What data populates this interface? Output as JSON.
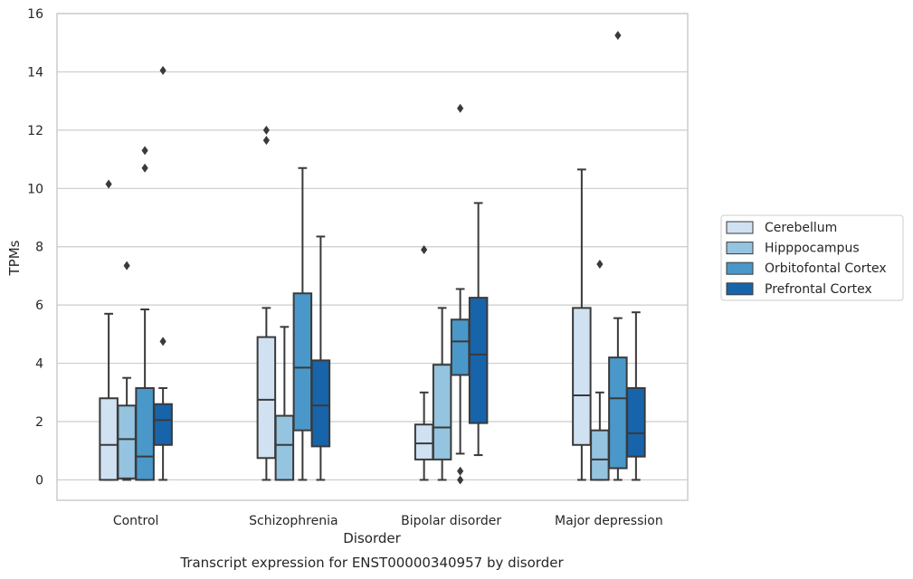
{
  "chart_data": {
    "type": "box",
    "xlabel": "Disorder",
    "ylabel": "TPMs",
    "caption": "Transcript expression for ENST00000340957 by disorder",
    "ylim": [
      -0.7,
      16
    ],
    "yticks": [
      0,
      2,
      4,
      6,
      8,
      10,
      12,
      14,
      16
    ],
    "grid": "horizontal",
    "legend_position": "right",
    "categories": [
      "Control",
      "Schizophrenia",
      "Bipolar disorder",
      "Major depression"
    ],
    "series": [
      {
        "name": "Cerebellum",
        "color": "#d0e1f2",
        "boxes": [
          {
            "min": 0,
            "q1": 0,
            "median": 1.2,
            "q3": 2.8,
            "max": 5.7,
            "outliers": [
              10.15
            ]
          },
          {
            "min": 0,
            "q1": 0.75,
            "median": 2.75,
            "q3": 4.9,
            "max": 5.9,
            "outliers": [
              11.65,
              12.0
            ]
          },
          {
            "min": 0,
            "q1": 0.7,
            "median": 1.25,
            "q3": 1.9,
            "max": 3.0,
            "outliers": [
              7.9
            ]
          },
          {
            "min": 0,
            "q1": 1.2,
            "median": 2.9,
            "q3": 5.9,
            "max": 10.65,
            "outliers": []
          }
        ]
      },
      {
        "name": "Hipppocampus",
        "color": "#94c4df",
        "boxes": [
          {
            "min": 0,
            "q1": 0.05,
            "median": 1.4,
            "q3": 2.55,
            "max": 3.5,
            "outliers": [
              7.35
            ]
          },
          {
            "min": 0,
            "q1": 0,
            "median": 1.2,
            "q3": 2.2,
            "max": 5.25,
            "outliers": []
          },
          {
            "min": 0,
            "q1": 0.7,
            "median": 1.8,
            "q3": 3.95,
            "max": 5.9,
            "outliers": []
          },
          {
            "min": 0,
            "q1": 0,
            "median": 0.7,
            "q3": 1.7,
            "max": 3.0,
            "outliers": [
              7.4
            ]
          }
        ]
      },
      {
        "name": "Orbitofontal Cortex",
        "color": "#4a98c9",
        "boxes": [
          {
            "min": 0,
            "q1": 0,
            "median": 0.8,
            "q3": 3.15,
            "max": 5.85,
            "outliers": [
              10.7,
              11.3
            ]
          },
          {
            "min": 0,
            "q1": 1.7,
            "median": 3.85,
            "q3": 6.4,
            "max": 10.7,
            "outliers": []
          },
          {
            "min": 0.9,
            "q1": 3.6,
            "median": 4.75,
            "q3": 5.5,
            "max": 6.55,
            "outliers": [
              0.0,
              0.3,
              12.75
            ]
          },
          {
            "min": 0,
            "q1": 0.4,
            "median": 2.8,
            "q3": 4.2,
            "max": 5.55,
            "outliers": [
              15.25
            ]
          }
        ]
      },
      {
        "name": "Prefrontal Cortex",
        "color": "#1764ab",
        "boxes": [
          {
            "min": 0,
            "q1": 1.2,
            "median": 2.05,
            "q3": 2.6,
            "max": 3.15,
            "outliers": [
              4.75,
              14.05
            ]
          },
          {
            "min": 0,
            "q1": 1.15,
            "median": 2.55,
            "q3": 4.1,
            "max": 8.35,
            "outliers": []
          },
          {
            "min": 0.85,
            "q1": 1.95,
            "median": 4.3,
            "q3": 6.25,
            "max": 9.5,
            "outliers": []
          },
          {
            "min": 0,
            "q1": 0.8,
            "median": 1.6,
            "q3": 3.15,
            "max": 5.75,
            "outliers": []
          }
        ]
      }
    ]
  }
}
